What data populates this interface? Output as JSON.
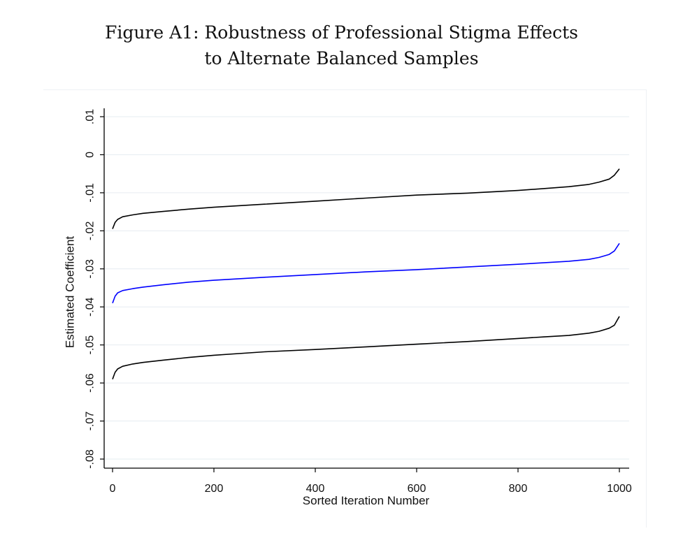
{
  "figure": {
    "title_line1": "Figure A1: Robustness of Professional Stigma Effects",
    "title_line2": "to Alternate Balanced Samples"
  },
  "chart_data": {
    "type": "line",
    "xlabel": "Sorted Iteration Number",
    "ylabel": "Estimated Coefficient",
    "xlim": [
      0,
      1000
    ],
    "ylim": [
      -0.08,
      0.01
    ],
    "xticks": [
      0,
      200,
      400,
      600,
      800,
      1000
    ],
    "xtick_labels": [
      "0",
      "200",
      "400",
      "600",
      "800",
      "1000"
    ],
    "yticks": [
      -0.08,
      -0.07,
      -0.06,
      -0.05,
      -0.04,
      -0.03,
      -0.02,
      -0.01,
      0,
      0.01
    ],
    "ytick_labels": [
      "-.08",
      "-.07",
      "-.06",
      "-.05",
      "-.04",
      "-.03",
      "-.02",
      "-.01",
      "0",
      ".01"
    ],
    "grid": true,
    "x": [
      0,
      5,
      10,
      20,
      40,
      60,
      100,
      150,
      200,
      300,
      400,
      500,
      600,
      700,
      800,
      850,
      900,
      940,
      960,
      980,
      990,
      1000
    ],
    "series": [
      {
        "color": "#000000",
        "values": [
          -0.0195,
          -0.0178,
          -0.017,
          -0.0163,
          -0.0158,
          -0.0154,
          -0.0149,
          -0.0143,
          -0.0138,
          -0.013,
          -0.0122,
          -0.0114,
          -0.0106,
          -0.0101,
          -0.0094,
          -0.0089,
          -0.0084,
          -0.0078,
          -0.0072,
          -0.0064,
          -0.0054,
          -0.0037
        ]
      },
      {
        "color": "#0000ff",
        "values": [
          -0.039,
          -0.0372,
          -0.0363,
          -0.0357,
          -0.0352,
          -0.0348,
          -0.0342,
          -0.0335,
          -0.033,
          -0.0322,
          -0.0315,
          -0.0308,
          -0.0302,
          -0.0295,
          -0.0288,
          -0.0284,
          -0.028,
          -0.0275,
          -0.027,
          -0.0262,
          -0.0253,
          -0.0233
        ]
      },
      {
        "color": "#000000",
        "values": [
          -0.059,
          -0.0572,
          -0.0563,
          -0.0556,
          -0.055,
          -0.0546,
          -0.054,
          -0.0533,
          -0.0527,
          -0.0518,
          -0.0512,
          -0.0505,
          -0.0498,
          -0.0491,
          -0.0483,
          -0.0479,
          -0.0475,
          -0.0469,
          -0.0464,
          -0.0456,
          -0.0448,
          -0.0425
        ]
      }
    ]
  }
}
